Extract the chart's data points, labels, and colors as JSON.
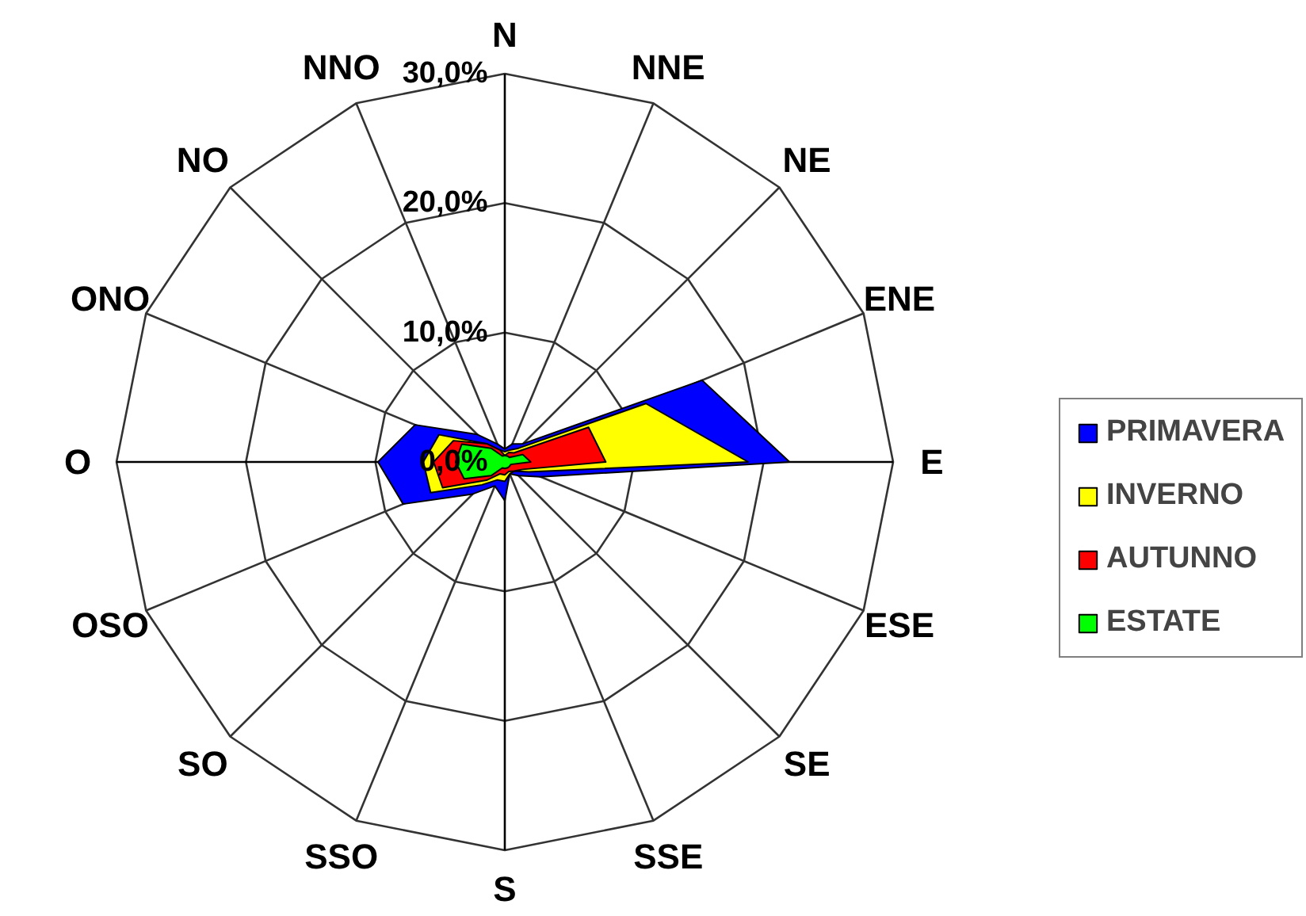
{
  "chart_data": {
    "type": "radar",
    "categories": [
      "N",
      "NNE",
      "NE",
      "ENE",
      "E",
      "ESE",
      "SE",
      "SSE",
      "S",
      "SSO",
      "SO",
      "OSO",
      "O",
      "ONO",
      "NO",
      "NNO"
    ],
    "series": [
      {
        "name": "PRIMAVERA",
        "color": "#0000ff",
        "values": [
          1,
          1.5,
          2,
          16.5,
          22,
          3,
          1.5,
          1,
          3,
          2,
          3.5,
          8.5,
          9.8,
          7.5,
          3,
          1.5
        ]
      },
      {
        "name": "INVERNO",
        "color": "#ffff00",
        "values": [
          0.8,
          1,
          1.5,
          11.8,
          18.8,
          2,
          1,
          1,
          1.5,
          1.5,
          2.5,
          6.2,
          6.3,
          5.5,
          2,
          1
        ]
      },
      {
        "name": "AUTUNNO",
        "color": "#ff0000",
        "values": [
          0.5,
          0.8,
          1,
          7,
          7.8,
          1.5,
          1,
          0.8,
          1,
          1,
          2,
          5.2,
          5.5,
          4.3,
          2,
          1
        ]
      },
      {
        "name": "ESTATE",
        "color": "#00ff00",
        "values": [
          0.5,
          0.5,
          0.5,
          1.5,
          2,
          0.5,
          0.5,
          0.5,
          0.5,
          0.5,
          1.5,
          3.4,
          3.8,
          3.6,
          1.5,
          0.5
        ]
      }
    ],
    "ylim": [
      0,
      30
    ],
    "yticks": [
      {
        "value": 0,
        "label": "0,0%"
      },
      {
        "value": 10,
        "label": "10,0%"
      },
      {
        "value": 20,
        "label": "20,0%"
      },
      {
        "value": 30,
        "label": "30,0%"
      }
    ],
    "grid": true,
    "legend": "right"
  }
}
